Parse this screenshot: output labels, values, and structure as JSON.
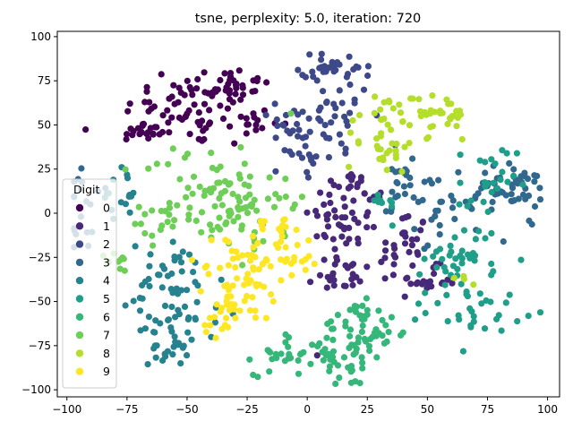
{
  "chart_data": {
    "type": "scatter",
    "title": "tsne, perplexity: 5.0, iteration: 720",
    "xlabel": "",
    "ylabel": "",
    "xlim": [
      -104,
      105
    ],
    "ylim": [
      -104,
      103
    ],
    "xticks": [
      -100,
      -75,
      -50,
      -25,
      0,
      25,
      50,
      75,
      100
    ],
    "yticks": [
      -100,
      -75,
      -50,
      -25,
      0,
      25,
      50,
      75,
      100
    ],
    "grid": false,
    "legend": {
      "title": "Digit",
      "position": "center-left"
    },
    "series": [
      {
        "name": "0",
        "color": "#440154",
        "clusters": [
          {
            "cx": -48,
            "cy": 58,
            "sx": 14,
            "sy": 10,
            "n": 60
          },
          {
            "cx": -35,
            "cy": 73,
            "sx": 10,
            "sy": 5,
            "n": 35
          },
          {
            "cx": -68,
            "cy": 46,
            "sx": 6,
            "sy": 3,
            "n": 20
          },
          {
            "cx": -25,
            "cy": 50,
            "sx": 5,
            "sy": 6,
            "n": 15
          }
        ]
      },
      {
        "name": "1",
        "color": "#482878",
        "clusters": [
          {
            "cx": 15,
            "cy": -5,
            "sx": 7,
            "sy": 18,
            "n": 55
          },
          {
            "cx": 40,
            "cy": -20,
            "sx": 5,
            "sy": 12,
            "n": 30
          },
          {
            "cx": 50,
            "cy": -38,
            "sx": 6,
            "sy": 4,
            "n": 20
          },
          {
            "cx": 22,
            "cy": 10,
            "sx": 5,
            "sy": 5,
            "n": 15
          },
          {
            "cx": 10,
            "cy": -38,
            "sx": 5,
            "sy": 3,
            "n": 15
          }
        ]
      },
      {
        "name": "2",
        "color": "#3e4989",
        "clusters": [
          {
            "cx": 8,
            "cy": 55,
            "sx": 10,
            "sy": 15,
            "n": 50
          },
          {
            "cx": 13,
            "cy": 83,
            "sx": 8,
            "sy": 4,
            "n": 30
          },
          {
            "cx": -5,
            "cy": 38,
            "sx": 5,
            "sy": 8,
            "n": 20
          }
        ]
      },
      {
        "name": "3",
        "color": "#31688e",
        "clusters": [
          {
            "cx": 85,
            "cy": 13,
            "sx": 8,
            "sy": 6,
            "n": 40
          },
          {
            "cx": 60,
            "cy": 5,
            "sx": 12,
            "sy": 10,
            "n": 40
          },
          {
            "cx": -92,
            "cy": 0,
            "sx": 5,
            "sy": 12,
            "n": 20
          },
          {
            "cx": 40,
            "cy": 20,
            "sx": 5,
            "sy": 10,
            "n": 20
          }
        ]
      },
      {
        "name": "4",
        "color": "#26828e",
        "clusters": [
          {
            "cx": -55,
            "cy": -40,
            "sx": 10,
            "sy": 12,
            "n": 45
          },
          {
            "cx": -55,
            "cy": -65,
            "sx": 8,
            "sy": 6,
            "n": 25
          },
          {
            "cx": -58,
            "cy": -78,
            "sx": 4,
            "sy": 4,
            "n": 15
          },
          {
            "cx": -78,
            "cy": 10,
            "sx": 4,
            "sy": 8,
            "n": 15
          }
        ]
      },
      {
        "name": "5",
        "color": "#1f9e89",
        "clusters": [
          {
            "cx": 65,
            "cy": -25,
            "sx": 8,
            "sy": 10,
            "n": 40
          },
          {
            "cx": 70,
            "cy": -55,
            "sx": 10,
            "sy": 6,
            "n": 30
          },
          {
            "cx": 75,
            "cy": 15,
            "sx": 6,
            "sy": 12,
            "n": 25
          },
          {
            "cx": 30,
            "cy": 5,
            "sx": 4,
            "sy": 4,
            "n": 10
          }
        ]
      },
      {
        "name": "6",
        "color": "#35b779",
        "clusters": [
          {
            "cx": 15,
            "cy": -80,
            "sx": 10,
            "sy": 10,
            "n": 50
          },
          {
            "cx": -10,
            "cy": -80,
            "sx": 6,
            "sy": 6,
            "n": 25
          },
          {
            "cx": 30,
            "cy": -68,
            "sx": 6,
            "sy": 4,
            "n": 20
          },
          {
            "cx": 20,
            "cy": -58,
            "sx": 5,
            "sy": 4,
            "n": 15
          }
        ]
      },
      {
        "name": "7",
        "color": "#6ece58",
        "clusters": [
          {
            "cx": -40,
            "cy": 10,
            "sx": 14,
            "sy": 15,
            "n": 75
          },
          {
            "cx": -20,
            "cy": 5,
            "sx": 8,
            "sy": 15,
            "n": 30
          },
          {
            "cx": -60,
            "cy": -5,
            "sx": 6,
            "sy": 6,
            "n": 15
          },
          {
            "cx": -78,
            "cy": -28,
            "sx": 3,
            "sy": 3,
            "n": 10
          }
        ]
      },
      {
        "name": "8",
        "color": "#b5de2b",
        "clusters": [
          {
            "cx": 32,
            "cy": 45,
            "sx": 8,
            "sy": 12,
            "n": 40
          },
          {
            "cx": 53,
            "cy": 55,
            "sx": 8,
            "sy": 7,
            "n": 35
          },
          {
            "cx": 68,
            "cy": -35,
            "sx": 3,
            "sy": 3,
            "n": 5
          }
        ]
      },
      {
        "name": "9",
        "color": "#fde725",
        "clusters": [
          {
            "cx": -28,
            "cy": -40,
            "sx": 10,
            "sy": 12,
            "n": 55
          },
          {
            "cx": -10,
            "cy": -20,
            "sx": 8,
            "sy": 10,
            "n": 40
          },
          {
            "cx": -35,
            "cy": -60,
            "sx": 5,
            "sy": 5,
            "n": 15
          }
        ]
      }
    ]
  }
}
